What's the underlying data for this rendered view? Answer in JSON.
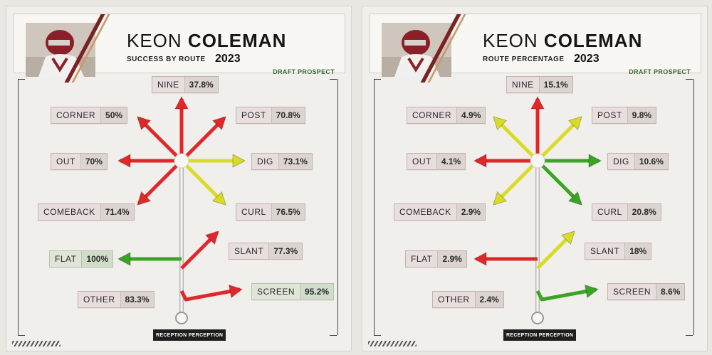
{
  "colors": {
    "red": "#e0282b",
    "yellow": "#d8dc26",
    "green": "#3aa524",
    "stem": "#b9b6b1"
  },
  "panels": [
    {
      "first_name": "KEON",
      "last_name": "COLEMAN",
      "subtitle": "SUCCESS BY ROUTE",
      "year": "2023",
      "badge": "DRAFT PROSPECT",
      "logo": "RECEPTION PERCEPTION",
      "routes": [
        {
          "name": "NINE",
          "value": "37.8%",
          "color": "red"
        },
        {
          "name": "CORNER",
          "value": "50%",
          "color": "red"
        },
        {
          "name": "POST",
          "value": "70.8%",
          "color": "red"
        },
        {
          "name": "OUT",
          "value": "70%",
          "color": "red"
        },
        {
          "name": "DIG",
          "value": "73.1%",
          "color": "yellow"
        },
        {
          "name": "COMEBACK",
          "value": "71.4%",
          "color": "red"
        },
        {
          "name": "CURL",
          "value": "76.5%",
          "color": "yellow"
        },
        {
          "name": "FLAT",
          "value": "100%",
          "color": "green"
        },
        {
          "name": "SLANT",
          "value": "77.3%",
          "color": "red"
        },
        {
          "name": "OTHER",
          "value": "83.3%",
          "color": "none"
        },
        {
          "name": "SCREEN",
          "value": "95.2%",
          "color": "red"
        }
      ]
    },
    {
      "first_name": "KEON",
      "last_name": "COLEMAN",
      "subtitle": "ROUTE PERCENTAGE",
      "year": "2023",
      "badge": "DRAFT PROSPECT",
      "logo": "RECEPTION PERCEPTION",
      "routes": [
        {
          "name": "NINE",
          "value": "15.1%",
          "color": "red"
        },
        {
          "name": "CORNER",
          "value": "4.9%",
          "color": "yellow"
        },
        {
          "name": "POST",
          "value": "9.8%",
          "color": "yellow"
        },
        {
          "name": "OUT",
          "value": "4.1%",
          "color": "red"
        },
        {
          "name": "DIG",
          "value": "10.6%",
          "color": "green"
        },
        {
          "name": "COMEBACK",
          "value": "2.9%",
          "color": "yellow"
        },
        {
          "name": "CURL",
          "value": "20.8%",
          "color": "green"
        },
        {
          "name": "FLAT",
          "value": "2.9%",
          "color": "red"
        },
        {
          "name": "SLANT",
          "value": "18%",
          "color": "yellow"
        },
        {
          "name": "OTHER",
          "value": "2.4%",
          "color": "none"
        },
        {
          "name": "SCREEN",
          "value": "8.6%",
          "color": "green"
        }
      ]
    }
  ]
}
